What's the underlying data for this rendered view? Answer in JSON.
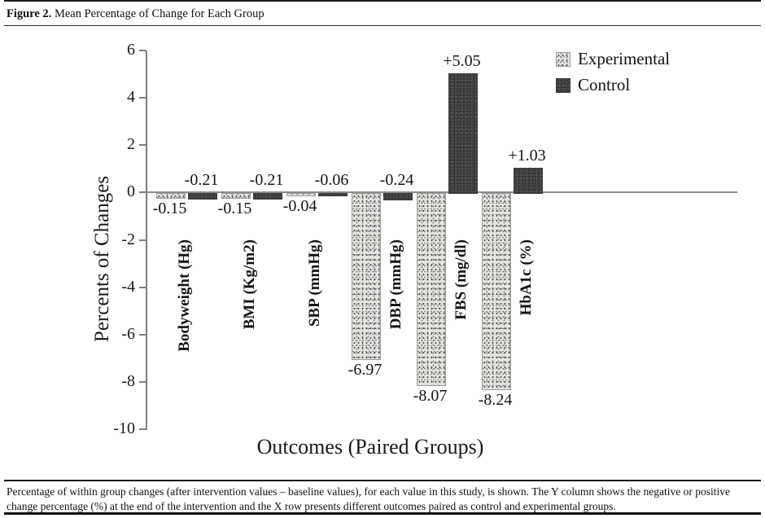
{
  "figure": {
    "label": "Figure 2.",
    "title": "Mean Percentage of Change for Each Group",
    "caption": "Percentage of within group changes (after intervention values – baseline values), for each value in this study, is shown. The Y column shows the negative or positive change percentage (%) at the end of the intervention and the X row presents different outcomes paired as control and experimental groups."
  },
  "chart_data": {
    "type": "bar",
    "title": "",
    "xlabel": "Outcomes (Paired Groups)",
    "ylabel": "Percents of Changes",
    "ylim": [
      -10,
      6
    ],
    "yticks": [
      6,
      4,
      2,
      0,
      -2,
      -4,
      -6,
      -8,
      -10
    ],
    "grid": false,
    "legend_position": "top-right",
    "categories": [
      "Bodyweight (Hg)",
      "BMI (Kg/m2)",
      "SBP (mmHg)",
      "DBP (mmHg)",
      "FBS (mg/dl)",
      "HbA1c (%)"
    ],
    "series": [
      {
        "name": "Experimental",
        "values": [
          -0.15,
          -0.15,
          -0.04,
          -6.97,
          -8.07,
          -8.24
        ],
        "labels": [
          "-0.15",
          "-0.15",
          "-0.04",
          "-6.97",
          "-8.07",
          "-8.24"
        ]
      },
      {
        "name": "Control",
        "values": [
          -0.21,
          -0.21,
          -0.06,
          -0.24,
          5.05,
          1.03
        ],
        "labels": [
          "-0.21",
          "-0.21",
          "-0.06",
          "-0.24",
          "+5.05",
          "+1.03"
        ]
      }
    ],
    "colors": {
      "experimental": "#e5e3e0",
      "control": "#434343"
    }
  }
}
